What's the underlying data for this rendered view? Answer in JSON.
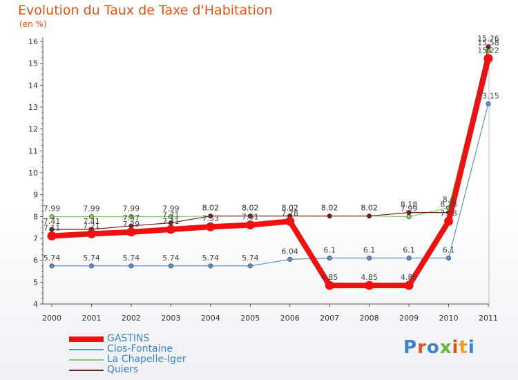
{
  "header": {
    "title": "Evolution du Taux de Taxe d'Habitation",
    "subtitle": "(en %)"
  },
  "brand": {
    "letters": [
      "P",
      "r",
      "o",
      "x",
      "i",
      "t",
      "i"
    ],
    "colors": [
      "#3b82c8",
      "#e0531b",
      "#3b82c8",
      "#6cb33f",
      "#e0531b",
      "#f0a020",
      "#3b82c8"
    ]
  },
  "chart_data": {
    "type": "line",
    "title": "Evolution du Taux de Taxe d'Habitation",
    "ylabel": "(en %)",
    "xlabel": "",
    "x": [
      "2000",
      "2001",
      "2002",
      "2003",
      "2004",
      "2005",
      "2006",
      "2007",
      "2008",
      "2009",
      "2010",
      "2011"
    ],
    "ylim": [
      4,
      16
    ],
    "yticks": [
      "4",
      "5",
      "6",
      "7",
      "8",
      "9",
      "10",
      "11",
      "12",
      "13",
      "14",
      "15",
      "16"
    ],
    "grid": false,
    "series": [
      {
        "name": "GASTINS",
        "color": "#ee1111",
        "thick": true,
        "values": [
          7.11,
          7.21,
          7.29,
          7.41,
          7.53,
          7.61,
          7.78,
          4.85,
          4.85,
          4.85,
          7.78,
          15.22
        ],
        "labels": [
          "7.11",
          "7.21",
          "7.29",
          "7.41",
          "7.53",
          "7.61",
          "7.78",
          "4.85",
          "4.85",
          "4.85",
          "7.78",
          "15.22"
        ]
      },
      {
        "name": "Clos-Fontaine",
        "color": "#5b8fc7",
        "thick": false,
        "values": [
          5.74,
          5.74,
          5.74,
          5.74,
          5.74,
          5.74,
          6.04,
          6.1,
          6.1,
          6.1,
          6.1,
          13.15
        ],
        "labels": [
          "5.74",
          "5.74",
          "5.74",
          "5.74",
          "5.74",
          "5.74",
          "6.04",
          "6.1",
          "6.1",
          "6.1",
          "6.1",
          "13.15"
        ]
      },
      {
        "name": "La Chapelle-Iger",
        "color": "#7fd05a",
        "thick": false,
        "values": [
          7.99,
          7.99,
          7.99,
          7.99,
          8.02,
          8.02,
          8.02,
          8.02,
          8.02,
          7.99,
          8.4,
          15.58
        ],
        "labels": [
          "7.99",
          "7.99",
          "7.99",
          "7.99",
          "8.02",
          "8.02",
          "8.02",
          "8.02",
          "8.02",
          "7.99",
          "8.4",
          "15.58"
        ]
      },
      {
        "name": "Quiers",
        "color": "#7a1e1e",
        "thick": false,
        "values": [
          7.41,
          7.41,
          7.57,
          7.71,
          8.02,
          8.02,
          8.02,
          8.02,
          8.02,
          8.18,
          8.18,
          15.76
        ],
        "labels": [
          "7.41",
          "7.41",
          "7.57",
          "7.71",
          "8.02",
          "8.02",
          "8.02",
          "8.02",
          "8.02",
          "8.18",
          "8.18",
          "15.76"
        ]
      }
    ]
  }
}
